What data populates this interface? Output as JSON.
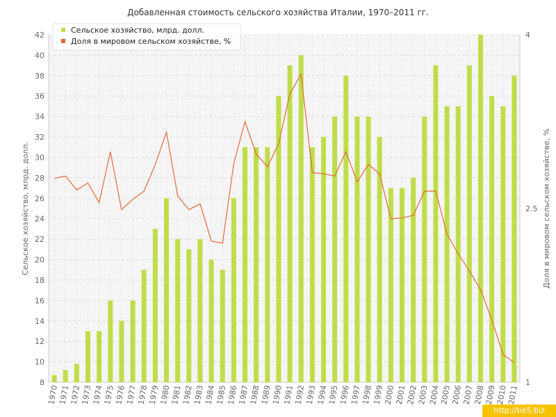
{
  "chart_data": {
    "type": "bar+line",
    "title": "Добавленная стоимость сельского хозяйства Италии, 1970–2011 гг.",
    "ylabel_left": "Сельское хозяйство, млрд. долл.",
    "ylabel_right": "Доля в мировом сельском хозяйстве, %",
    "ylim_left": [
      8,
      42
    ],
    "ylim_right": [
      1,
      4
    ],
    "yticks_left": [
      "8",
      "10",
      "12",
      "14",
      "16",
      "18",
      "20",
      "22",
      "24",
      "26",
      "28",
      "30",
      "32",
      "34",
      "36",
      "38",
      "40",
      "42"
    ],
    "yticks_right": [
      "1",
      "2.5",
      "4"
    ],
    "grid": true,
    "legend_position": "top-left",
    "categories": [
      "1970",
      "1971",
      "1972",
      "1973",
      "1974",
      "1975",
      "1976",
      "1977",
      "1978",
      "1979",
      "1980",
      "1981",
      "1982",
      "1983",
      "1984",
      "1985",
      "1986",
      "1987",
      "1988",
      "1989",
      "1990",
      "1991",
      "1992",
      "1993",
      "1994",
      "1995",
      "1996",
      "1997",
      "1998",
      "1999",
      "2000",
      "2001",
      "2002",
      "2003",
      "2004",
      "2005",
      "2006",
      "2007",
      "2008",
      "2009",
      "2010",
      "2011"
    ],
    "series": [
      {
        "name": "Сельское хозяйство, млрд. долл.",
        "type": "bar",
        "axis": "left",
        "color": "#bfdd4a",
        "values": [
          8.7,
          9.2,
          9.8,
          13,
          13,
          16,
          14,
          16,
          19,
          23,
          26,
          22,
          21,
          22,
          20,
          19,
          26,
          31,
          31,
          31,
          36,
          39,
          40,
          31,
          32,
          34,
          38,
          34,
          34,
          32,
          27,
          27,
          28,
          34,
          39,
          35,
          35,
          39,
          42,
          36,
          35,
          38
        ]
      },
      {
        "name": "Доля в мировом сельском хозяйстве, %",
        "type": "line",
        "axis": "right",
        "color": "#e06a3c",
        "values": [
          2.76,
          2.78,
          2.66,
          2.72,
          2.55,
          2.99,
          2.49,
          2.58,
          2.65,
          2.88,
          3.16,
          2.61,
          2.49,
          2.54,
          2.22,
          2.2,
          2.89,
          3.25,
          2.97,
          2.86,
          3.06,
          3.49,
          3.66,
          2.81,
          2.8,
          2.78,
          2.99,
          2.73,
          2.88,
          2.8,
          2.41,
          2.42,
          2.44,
          2.65,
          2.65,
          2.28,
          2.11,
          1.96,
          1.8,
          1.54,
          1.24,
          1.17
        ]
      }
    ]
  },
  "watermark": "http://be5.biz"
}
